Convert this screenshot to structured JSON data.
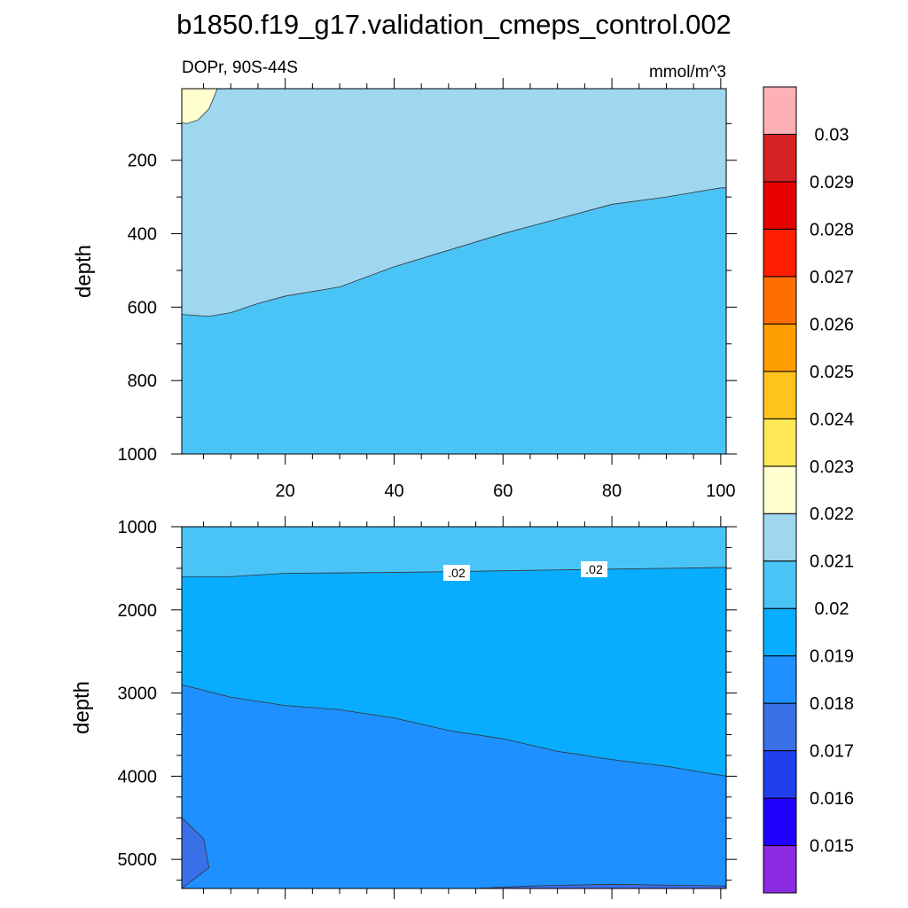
{
  "title": "b1850.f19_g17.validation_cmeps_control.002",
  "chart_data": {
    "type": "contour",
    "variable_label": "DOPr, 90S-44S",
    "units": "mmol/m^3",
    "colorbar": {
      "colors": [
        "#8a2be2",
        "#2000ff",
        "#2040f0",
        "#3a70e8",
        "#1e90ff",
        "#09adff",
        "#4ac4f7",
        "#9fd6f0",
        "#ffffd0",
        "#ffe855",
        "#ffc41c",
        "#ff9e00",
        "#ff6e00",
        "#ff1e00",
        "#e60000",
        "#d62222",
        "#ffb0b4"
      ],
      "levels": [
        "0.015",
        "0.016",
        "0.017",
        "0.018",
        "0.019",
        "0.02",
        "0.021",
        "0.022",
        "0.023",
        "0.024",
        "0.025",
        "0.026",
        "0.027",
        "0.028",
        "0.029",
        "0.03"
      ]
    },
    "panels": [
      {
        "name": "upper",
        "xlim": [
          1,
          101
        ],
        "ylim": [
          1000,
          5
        ],
        "ylabel": "depth",
        "x_ticks": [
          "20",
          "40",
          "60",
          "80",
          "100"
        ],
        "y_ticks": [
          "200",
          "400",
          "600",
          "800",
          "1000"
        ],
        "regions": [
          {
            "value_range": [
              "0.021",
              "0.022"
            ],
            "color": "#9fd6f0"
          },
          {
            "value_range": [
              "0.022",
              "0.023"
            ],
            "color": "#ffffd0"
          },
          {
            "value_range": [
              "0.02",
              "0.021"
            ],
            "color": "#4ac4f7"
          }
        ],
        "boundary_0021": [
          [
            1,
            620
          ],
          [
            6,
            625
          ],
          [
            10,
            615
          ],
          [
            15,
            590
          ],
          [
            20,
            570
          ],
          [
            30,
            545
          ],
          [
            40,
            490
          ],
          [
            50,
            445
          ],
          [
            60,
            400
          ],
          [
            70,
            360
          ],
          [
            80,
            320
          ],
          [
            90,
            300
          ],
          [
            100,
            275
          ]
        ]
      },
      {
        "name": "lower",
        "xlim": [
          1,
          101
        ],
        "ylim": [
          5350,
          1000
        ],
        "ylabel": "depth",
        "x_ticks": [],
        "y_ticks": [
          "1000",
          "2000",
          "3000",
          "4000",
          "5000"
        ],
        "contour_labels": [
          ".02",
          ".02"
        ],
        "regions": [
          {
            "value_range": [
              "0.02",
              "0.021"
            ],
            "color": "#4ac4f7"
          },
          {
            "value_range": [
              "0.019",
              "0.02"
            ],
            "color": "#09adff"
          },
          {
            "value_range": [
              "0.018",
              "0.019"
            ],
            "color": "#1e90ff"
          },
          {
            "value_range": [
              "0.017",
              "0.018"
            ],
            "color": "#3a70e8"
          }
        ],
        "boundary_002": [
          [
            1,
            1600
          ],
          [
            10,
            1600
          ],
          [
            20,
            1560
          ],
          [
            40,
            1550
          ],
          [
            60,
            1530
          ],
          [
            80,
            1510
          ],
          [
            101,
            1490
          ]
        ],
        "boundary_0019": [
          [
            1,
            2900
          ],
          [
            10,
            3050
          ],
          [
            20,
            3150
          ],
          [
            30,
            3200
          ],
          [
            40,
            3300
          ],
          [
            50,
            3450
          ],
          [
            60,
            3550
          ],
          [
            70,
            3700
          ],
          [
            80,
            3800
          ],
          [
            90,
            3880
          ],
          [
            101,
            4000
          ]
        ],
        "patch_0018_bottomleft": [
          [
            1,
            4500
          ],
          [
            5,
            4750
          ],
          [
            6,
            5100
          ],
          [
            1,
            5350
          ]
        ],
        "patch_0018_bottomright": [
          [
            55,
            5350
          ],
          [
            65,
            5320
          ],
          [
            80,
            5300
          ],
          [
            101,
            5320
          ],
          [
            101,
            5350
          ]
        ]
      }
    ]
  }
}
